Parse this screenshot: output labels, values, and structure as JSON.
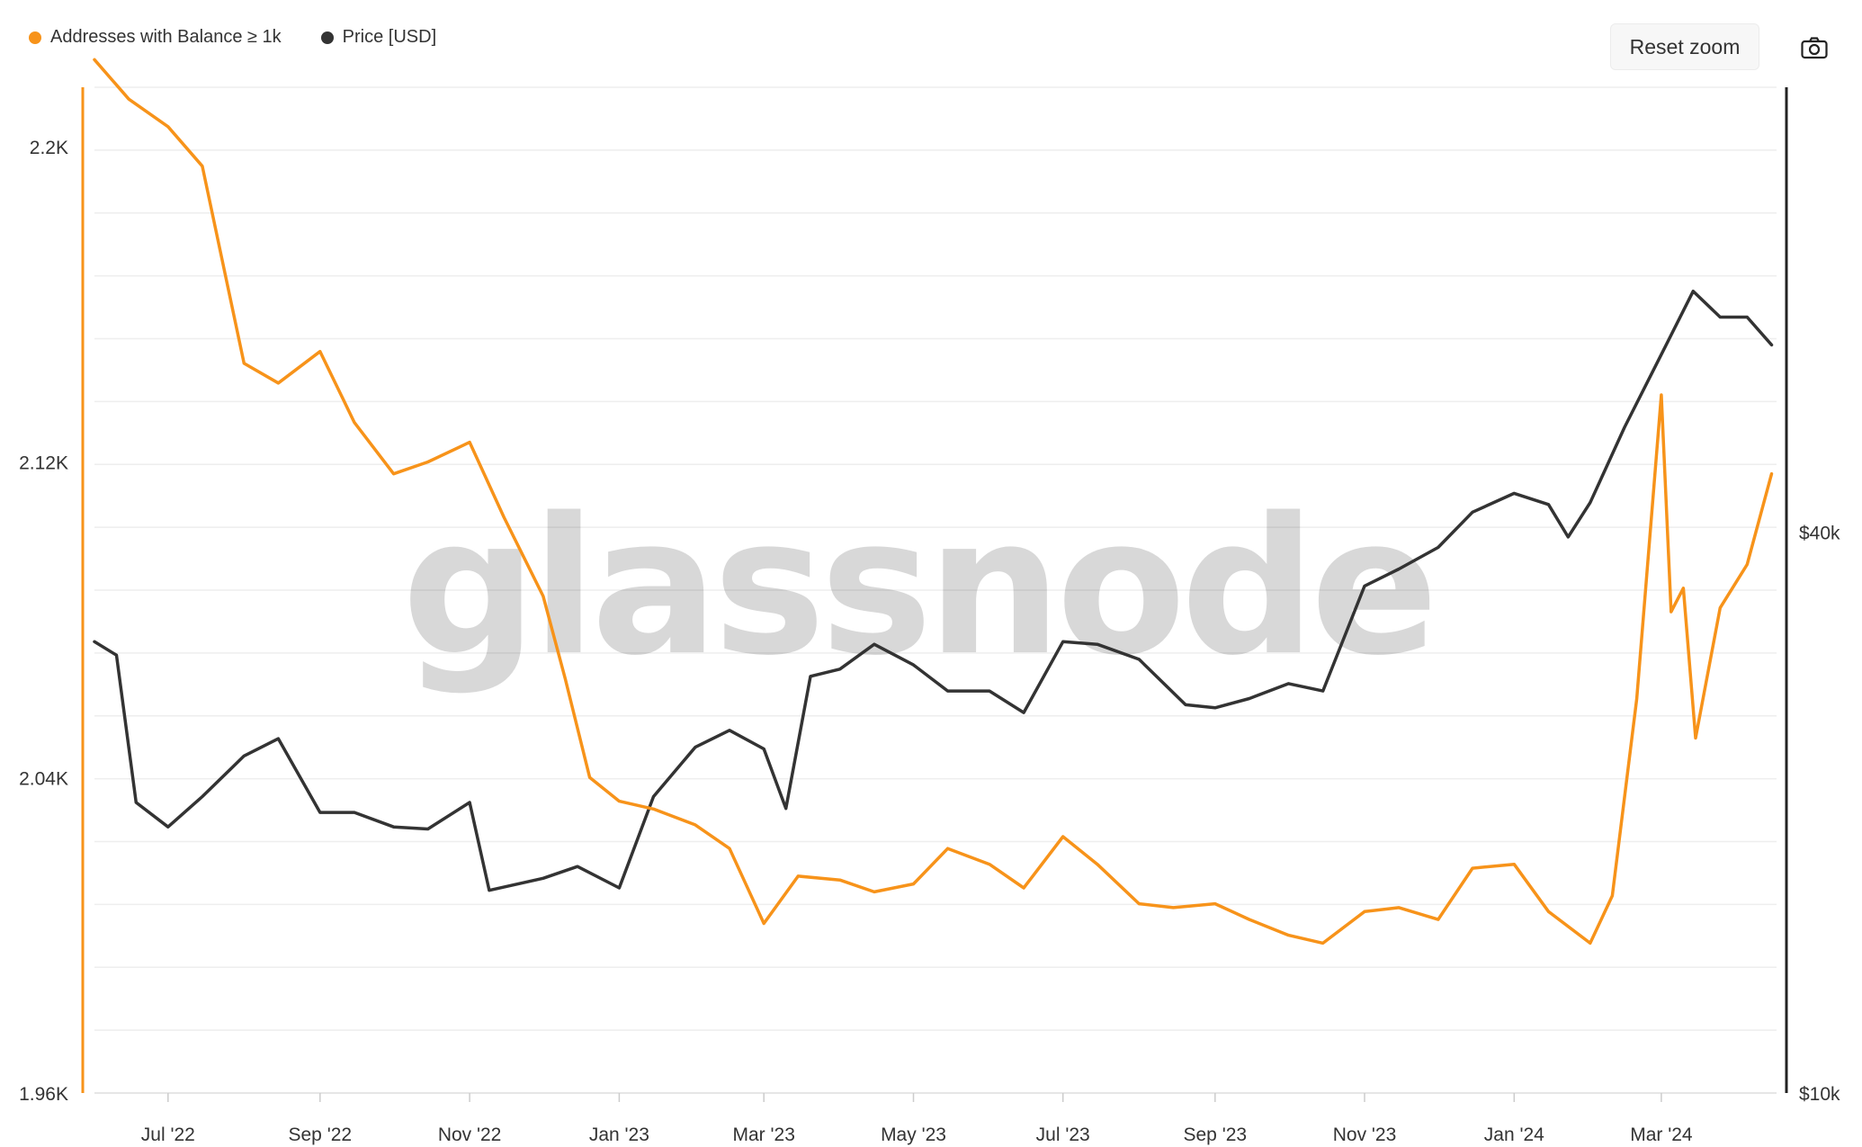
{
  "legend": [
    {
      "label": "Addresses with Balance ≥ 1k",
      "color": "#f7931a"
    },
    {
      "label": "Price [USD]",
      "color": "#333333"
    }
  ],
  "toolbar": {
    "reset_zoom_label": "Reset zoom",
    "camera_icon": "camera-icon"
  },
  "watermark": "glassnode",
  "chart_data": {
    "type": "line",
    "x_tick_labels": [
      "Jul '22",
      "Sep '22",
      "Nov '22",
      "Jan '23",
      "Mar '23",
      "May '23",
      "Jul '23",
      "Sep '23",
      "Nov '23",
      "Jan '24",
      "Mar '24"
    ],
    "y_left": {
      "ticks": [
        "2.2K",
        "2.12K",
        "2.04K",
        "1.96K"
      ],
      "range": [
        1960,
        2215
      ]
    },
    "y_right": {
      "ticks": [
        "$40k",
        "$10k"
      ],
      "scale": "log",
      "range": [
        10000,
        120000
      ]
    },
    "grid": true,
    "legend_position": "top-left",
    "series": [
      {
        "name": "Addresses with Balance ≥ 1k",
        "axis": "left",
        "color": "#f7931a",
        "points": [
          [
            "2022-06-01",
            2222
          ],
          [
            "2022-06-15",
            2212
          ],
          [
            "2022-07-01",
            2205
          ],
          [
            "2022-07-15",
            2195
          ],
          [
            "2022-08-01",
            2145
          ],
          [
            "2022-08-15",
            2140
          ],
          [
            "2022-09-01",
            2148
          ],
          [
            "2022-09-15",
            2130
          ],
          [
            "2022-10-01",
            2117
          ],
          [
            "2022-10-15",
            2120
          ],
          [
            "2022-11-01",
            2125
          ],
          [
            "2022-11-15",
            2106
          ],
          [
            "2022-12-01",
            2086
          ],
          [
            "2022-12-10",
            2065
          ],
          [
            "2022-12-20",
            2040
          ],
          [
            "2023-01-01",
            2034
          ],
          [
            "2023-01-15",
            2032
          ],
          [
            "2023-02-01",
            2028
          ],
          [
            "2023-02-15",
            2022
          ],
          [
            "2023-03-01",
            2003
          ],
          [
            "2023-03-15",
            2015
          ],
          [
            "2023-04-01",
            2014
          ],
          [
            "2023-04-15",
            2011
          ],
          [
            "2023-05-01",
            2013
          ],
          [
            "2023-05-15",
            2022
          ],
          [
            "2023-06-01",
            2018
          ],
          [
            "2023-06-15",
            2012
          ],
          [
            "2023-07-01",
            2025
          ],
          [
            "2023-07-15",
            2018
          ],
          [
            "2023-08-01",
            2008
          ],
          [
            "2023-08-15",
            2007
          ],
          [
            "2023-09-01",
            2008
          ],
          [
            "2023-09-15",
            2004
          ],
          [
            "2023-10-01",
            2000
          ],
          [
            "2023-10-15",
            1998
          ],
          [
            "2023-11-01",
            2006
          ],
          [
            "2023-11-15",
            2007
          ],
          [
            "2023-12-01",
            2004
          ],
          [
            "2023-12-15",
            2017
          ],
          [
            "2024-01-01",
            2018
          ],
          [
            "2024-01-15",
            2006
          ],
          [
            "2024-02-01",
            1998
          ],
          [
            "2024-02-10",
            2010
          ],
          [
            "2024-02-20",
            2060
          ],
          [
            "2024-03-01",
            2137
          ],
          [
            "2024-03-05",
            2082
          ],
          [
            "2024-03-10",
            2088
          ],
          [
            "2024-03-15",
            2050
          ],
          [
            "2024-03-25",
            2083
          ],
          [
            "2024-04-05",
            2094
          ],
          [
            "2024-04-15",
            2117
          ]
        ]
      },
      {
        "name": "Price [USD]",
        "axis": "right",
        "color": "#333333",
        "points": [
          [
            "2022-06-01",
            30500
          ],
          [
            "2022-06-10",
            29500
          ],
          [
            "2022-06-18",
            20500
          ],
          [
            "2022-07-01",
            19300
          ],
          [
            "2022-07-15",
            20800
          ],
          [
            "2022-08-01",
            23000
          ],
          [
            "2022-08-15",
            24000
          ],
          [
            "2022-09-01",
            20000
          ],
          [
            "2022-09-15",
            20000
          ],
          [
            "2022-10-01",
            19300
          ],
          [
            "2022-10-15",
            19200
          ],
          [
            "2022-11-01",
            20500
          ],
          [
            "2022-11-09",
            16500
          ],
          [
            "2022-12-01",
            17000
          ],
          [
            "2022-12-15",
            17500
          ],
          [
            "2023-01-01",
            16600
          ],
          [
            "2023-01-15",
            20800
          ],
          [
            "2023-02-01",
            23500
          ],
          [
            "2023-02-15",
            24500
          ],
          [
            "2023-03-01",
            23400
          ],
          [
            "2023-03-10",
            20200
          ],
          [
            "2023-03-20",
            28000
          ],
          [
            "2023-04-01",
            28500
          ],
          [
            "2023-04-15",
            30300
          ],
          [
            "2023-05-01",
            28800
          ],
          [
            "2023-05-15",
            27000
          ],
          [
            "2023-06-01",
            27000
          ],
          [
            "2023-06-15",
            25600
          ],
          [
            "2023-07-01",
            30500
          ],
          [
            "2023-07-15",
            30300
          ],
          [
            "2023-08-01",
            29200
          ],
          [
            "2023-08-20",
            26100
          ],
          [
            "2023-09-01",
            25900
          ],
          [
            "2023-09-15",
            26500
          ],
          [
            "2023-10-01",
            27500
          ],
          [
            "2023-10-15",
            27000
          ],
          [
            "2023-11-01",
            35000
          ],
          [
            "2023-11-15",
            36500
          ],
          [
            "2023-12-01",
            38500
          ],
          [
            "2023-12-15",
            42000
          ],
          [
            "2024-01-01",
            44000
          ],
          [
            "2024-01-15",
            42800
          ],
          [
            "2024-01-23",
            39500
          ],
          [
            "2024-02-01",
            43000
          ],
          [
            "2024-02-15",
            51800
          ],
          [
            "2024-03-01",
            62000
          ],
          [
            "2024-03-14",
            72500
          ],
          [
            "2024-03-25",
            68000
          ],
          [
            "2024-04-05",
            68000
          ],
          [
            "2024-04-15",
            63500
          ]
        ]
      }
    ]
  }
}
